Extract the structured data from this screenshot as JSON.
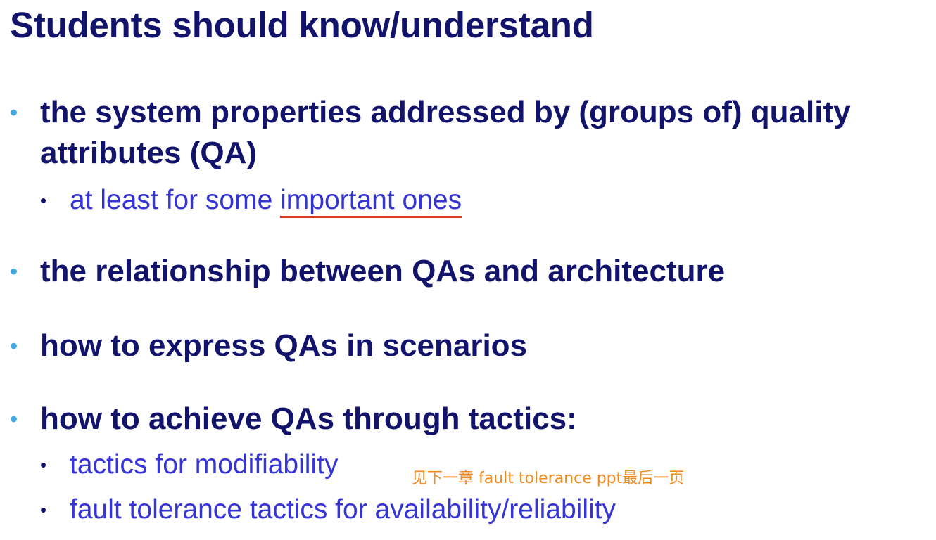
{
  "slide": {
    "title": "Students should know/understand",
    "bullets": [
      {
        "text_line1": "the system properties addressed by (groups of) quality",
        "text_line2": "attributes (QA)",
        "sub": [
          {
            "prefix": "at least for some ",
            "underlined": "important ones"
          }
        ]
      },
      {
        "text": "the relationship between QAs and architecture"
      },
      {
        "text": "how to express QAs in scenarios"
      },
      {
        "text": "how to achieve QAs through tactics:",
        "sub": [
          {
            "text": "tactics for modifiability"
          },
          {
            "text": "fault tolerance tactics for availability/reliability"
          }
        ]
      }
    ],
    "bullet_glyph": "•",
    "annotation": "见下一章 fault tolerance ppt最后一页"
  },
  "colors": {
    "title": "#12136b",
    "main_bullet_dot": "#43a6dc",
    "sub_text": "#3535d6",
    "underline": "#e03a2e",
    "annotation": "#ef8a1f"
  }
}
